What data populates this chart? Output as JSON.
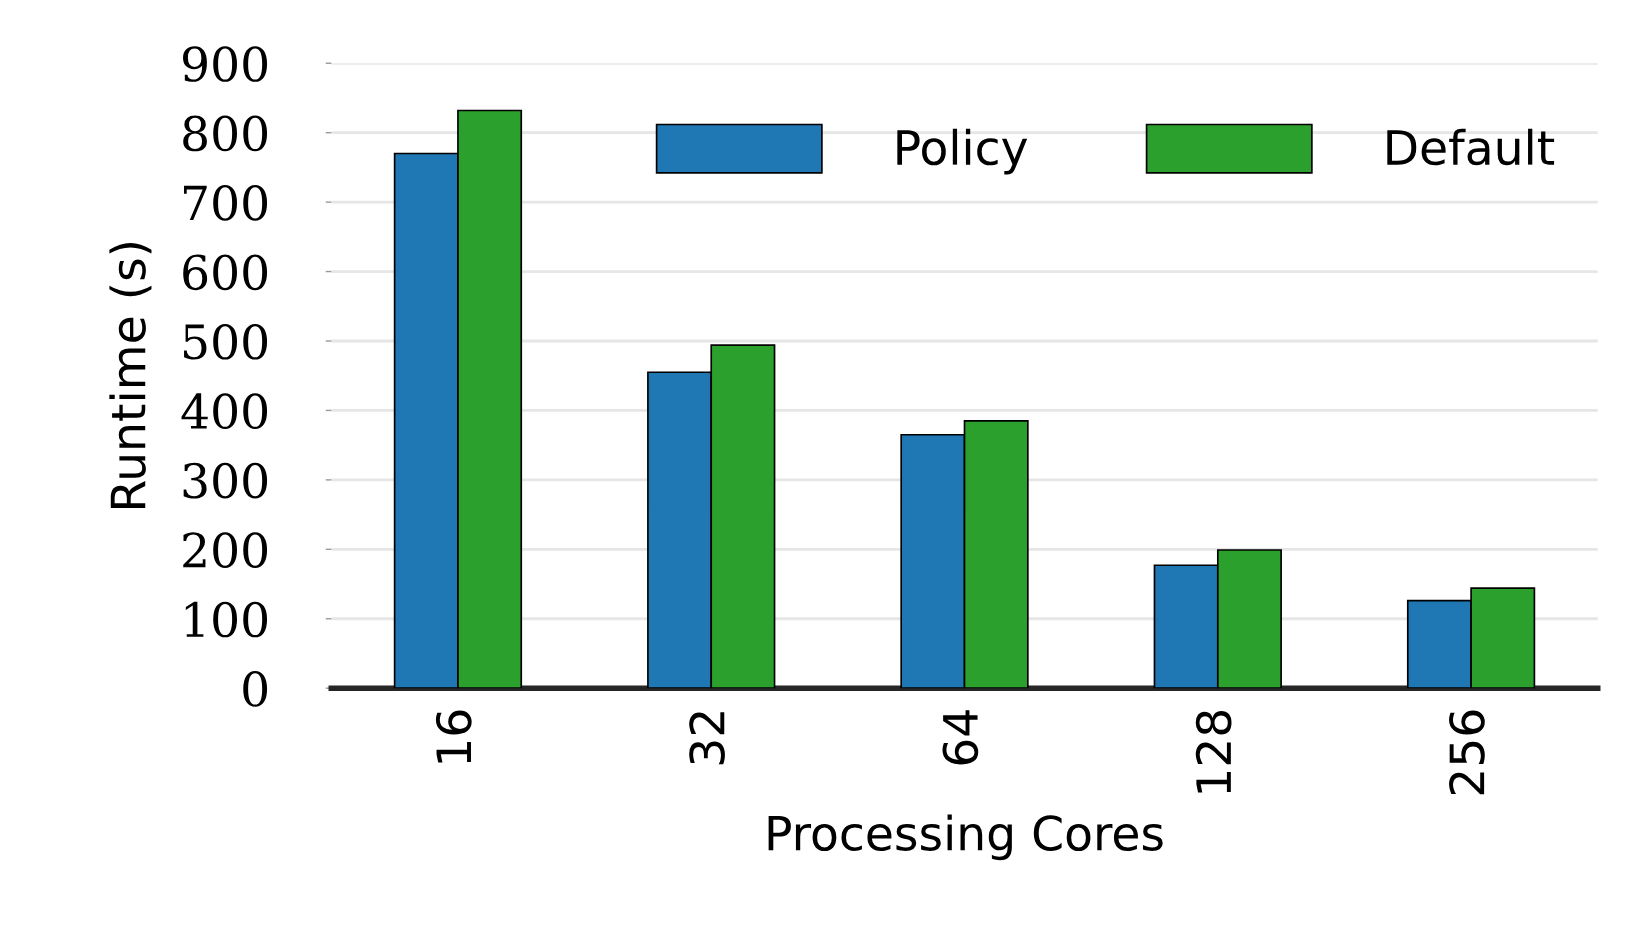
{
  "chart_data": {
    "type": "bar",
    "xlabel": "Processing Cores",
    "ylabel": "Runtime (s)",
    "categories": [
      "16",
      "32",
      "64",
      "128",
      "256"
    ],
    "series": [
      {
        "name": "Policy",
        "color": "#1f77b4",
        "values": [
          770,
          455,
          365,
          177,
          126
        ]
      },
      {
        "name": "Default",
        "color": "#2ca02c",
        "values": [
          832,
          494,
          385,
          199,
          144
        ]
      }
    ],
    "ylim": [
      0,
      900
    ],
    "yticks": [
      0,
      100,
      200,
      300,
      400,
      500,
      600,
      700,
      800,
      900
    ],
    "grid": "y",
    "legend": "top right"
  }
}
